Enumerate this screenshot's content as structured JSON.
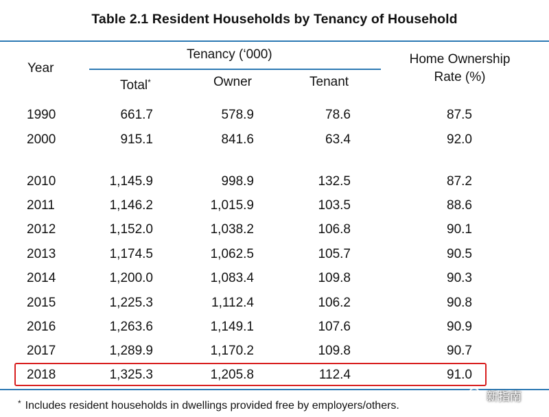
{
  "title": "Table 2.1  Resident Households by Tenancy of Household",
  "headers": {
    "year": "Year",
    "tenancy": "Tenancy (‘000)",
    "total": "Total",
    "total_marker": "*",
    "owner": "Owner",
    "tenant": "Tenant",
    "ownership_line1": "Home Ownership",
    "ownership_line2": "Rate (%)"
  },
  "rows": [
    {
      "year": "1990",
      "total": "661.7",
      "owner": "578.9",
      "tenant": "78.6",
      "rate": "87.5"
    },
    {
      "year": "2000",
      "total": "915.1",
      "owner": "841.6",
      "tenant": "63.4",
      "rate": "92.0"
    },
    {
      "year": "2010",
      "total": "1,145.9",
      "owner": "998.9",
      "tenant": "132.5",
      "rate": "87.2"
    },
    {
      "year": "2011",
      "total": "1,146.2",
      "owner": "1,015.9",
      "tenant": "103.5",
      "rate": "88.6"
    },
    {
      "year": "2012",
      "total": "1,152.0",
      "owner": "1,038.2",
      "tenant": "106.8",
      "rate": "90.1"
    },
    {
      "year": "2013",
      "total": "1,174.5",
      "owner": "1,062.5",
      "tenant": "105.7",
      "rate": "90.5"
    },
    {
      "year": "2014",
      "total": "1,200.0",
      "owner": "1,083.4",
      "tenant": "109.8",
      "rate": "90.3"
    },
    {
      "year": "2015",
      "total": "1,225.3",
      "owner": "1,112.4",
      "tenant": "106.2",
      "rate": "90.8"
    },
    {
      "year": "2016",
      "total": "1,263.6",
      "owner": "1,149.1",
      "tenant": "107.6",
      "rate": "90.9"
    },
    {
      "year": "2017",
      "total": "1,289.9",
      "owner": "1,170.2",
      "tenant": "109.8",
      "rate": "90.7"
    },
    {
      "year": "2018",
      "total": "1,325.3",
      "owner": "1,205.8",
      "tenant": "112.4",
      "rate": "91.0"
    }
  ],
  "footnote": {
    "marker": "*",
    "text": "Includes resident households in dwellings provided free by employers/others."
  },
  "watermark": "新指南",
  "colors": {
    "rule": "#2b78b3",
    "highlight": "#d81e1e"
  }
}
